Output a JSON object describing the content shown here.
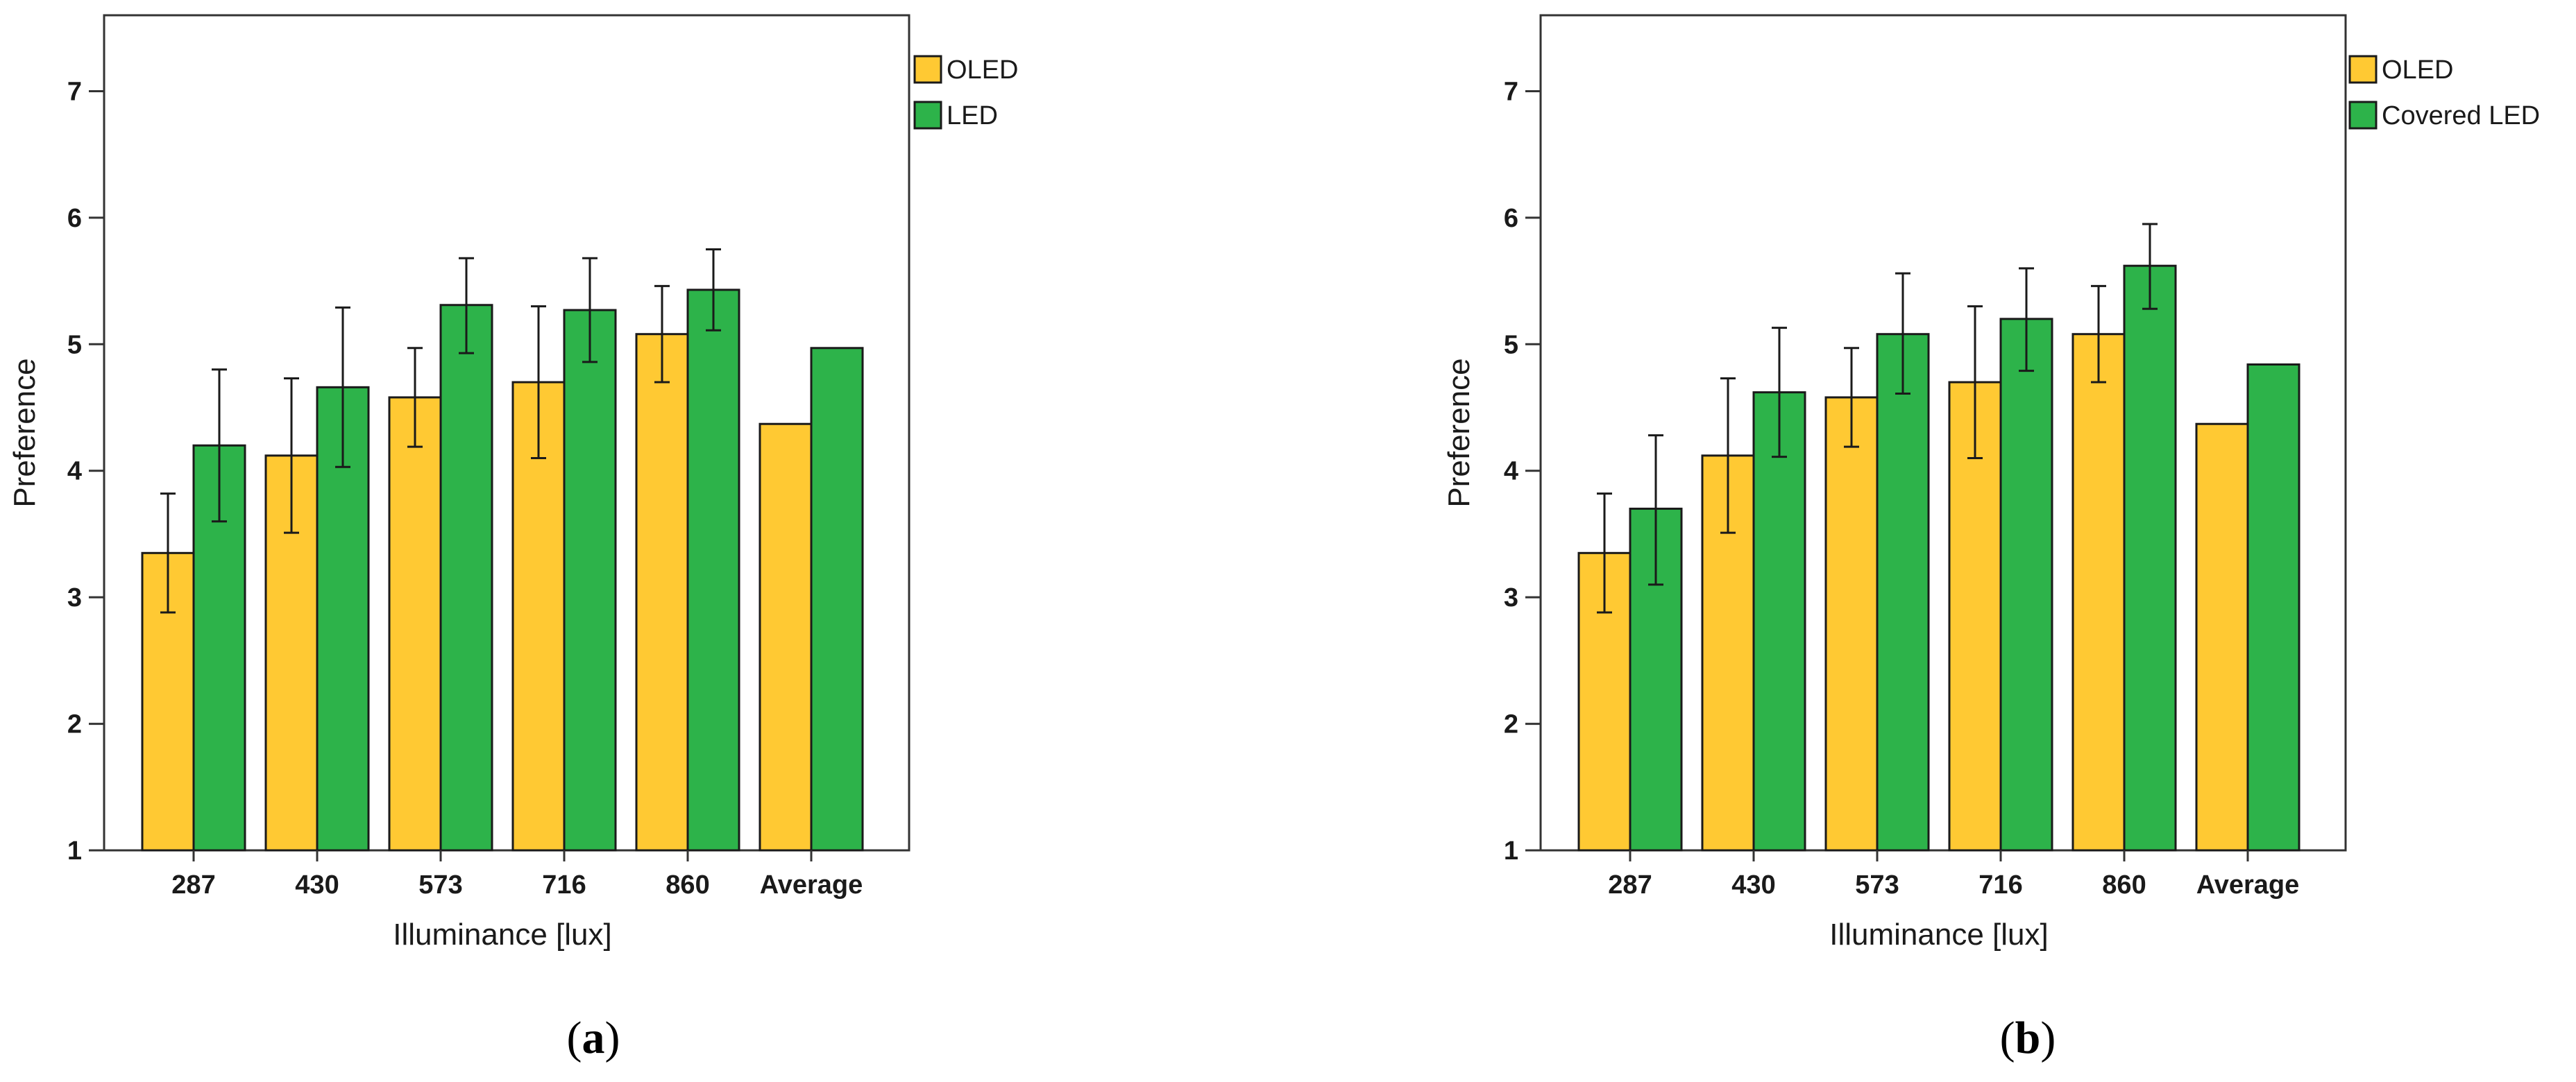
{
  "chart_data": [
    {
      "type": "bar",
      "panel": "a",
      "caption_letter": "a",
      "xlabel": "Illuminance [lux]",
      "ylabel": "Preference",
      "ylim": [
        1,
        7.6
      ],
      "yticks": [
        1,
        2,
        3,
        4,
        5,
        6,
        7
      ],
      "categories": [
        "287",
        "430",
        "573",
        "716",
        "860",
        "Average"
      ],
      "series": [
        {
          "name": "OLED",
          "color": "#ffc933",
          "values": [
            3.35,
            4.12,
            4.58,
            4.7,
            5.08,
            4.37
          ],
          "err_low": [
            2.88,
            3.51,
            4.19,
            4.1,
            4.7,
            null
          ],
          "err_high": [
            3.82,
            4.73,
            4.97,
            5.3,
            5.46,
            null
          ]
        },
        {
          "name": "LED",
          "color": "#2db34a",
          "values": [
            4.2,
            4.66,
            5.31,
            5.27,
            5.43,
            4.97
          ],
          "err_low": [
            3.6,
            4.03,
            4.93,
            4.86,
            5.11,
            null
          ],
          "err_high": [
            4.8,
            5.29,
            5.68,
            5.68,
            5.75,
            null
          ]
        }
      ],
      "legend_position": "top-right"
    },
    {
      "type": "bar",
      "panel": "b",
      "caption_letter": "b",
      "xlabel": "Illuminance [lux]",
      "ylabel": "Preference",
      "ylim": [
        1,
        7.6
      ],
      "yticks": [
        1,
        2,
        3,
        4,
        5,
        6,
        7
      ],
      "categories": [
        "287",
        "430",
        "573",
        "716",
        "860",
        "Average"
      ],
      "series": [
        {
          "name": "OLED",
          "color": "#ffc933",
          "values": [
            3.35,
            4.12,
            4.58,
            4.7,
            5.08,
            4.37
          ],
          "err_low": [
            2.88,
            3.51,
            4.19,
            4.1,
            4.7,
            null
          ],
          "err_high": [
            3.82,
            4.73,
            4.97,
            5.3,
            5.46,
            null
          ]
        },
        {
          "name": "Covered LED",
          "color": "#2db34a",
          "values": [
            3.7,
            4.62,
            5.08,
            5.2,
            5.62,
            4.84
          ],
          "err_low": [
            3.1,
            4.11,
            4.61,
            4.79,
            5.28,
            null
          ],
          "err_high": [
            4.28,
            5.13,
            5.56,
            5.6,
            5.95,
            null
          ]
        }
      ],
      "legend_position": "top-right"
    }
  ]
}
